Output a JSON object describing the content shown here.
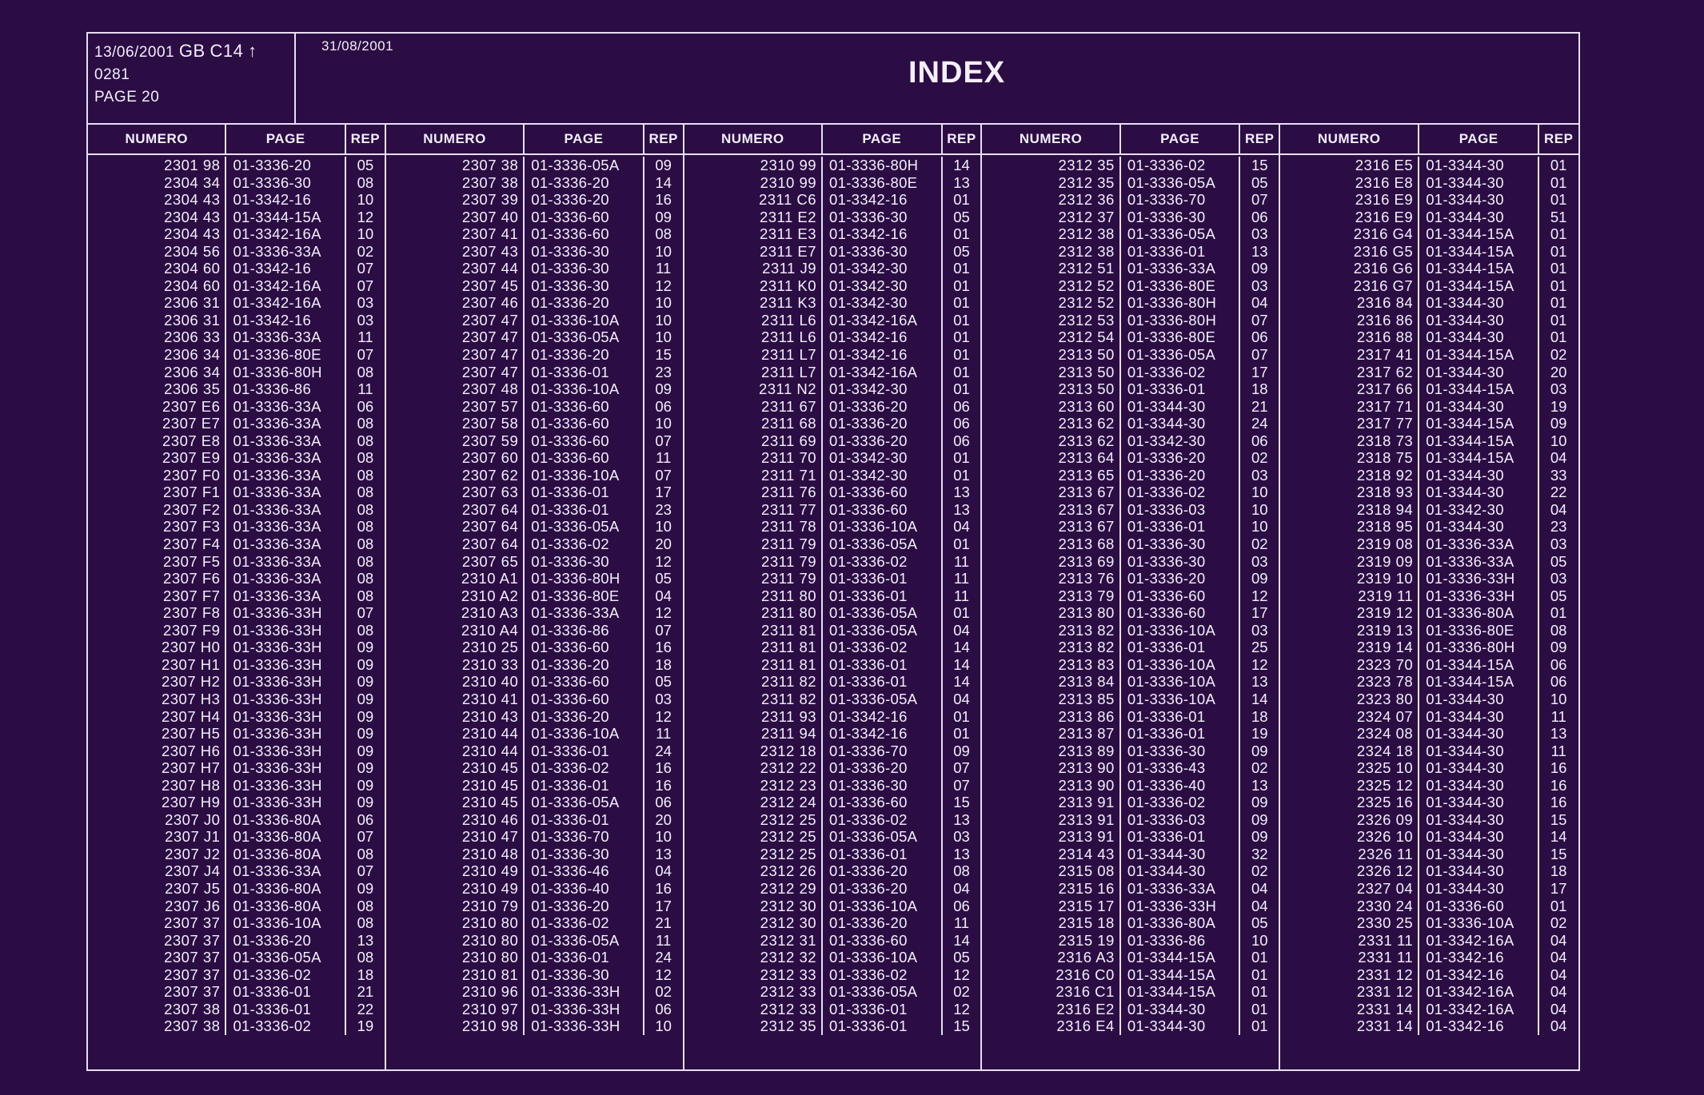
{
  "header": {
    "date1": "13/06/2001",
    "code": "GB",
    "code2": "C14",
    "arrow": "↑",
    "line2": "0281",
    "page_label": "PAGE 20",
    "date2": "31/08/2001",
    "title": "INDEX"
  },
  "column_headers": {
    "numero": "NUMERO",
    "page": "PAGE",
    "rep": "REP"
  },
  "columns": [
    [
      [
        "2301 98",
        "01-3336-20",
        "05"
      ],
      [
        "2304 34",
        "01-3336-30",
        "08"
      ],
      [
        "2304 43",
        "01-3342-16",
        "10"
      ],
      [
        "2304 43",
        "01-3344-15A",
        "12"
      ],
      [
        "2304 43",
        "01-3342-16A",
        "10"
      ],
      [
        "2304 56",
        "01-3336-33A",
        "02"
      ],
      [
        "2304 60",
        "01-3342-16",
        "07"
      ],
      [
        "2304 60",
        "01-3342-16A",
        "07"
      ],
      [
        "2306 31",
        "01-3342-16A",
        "03"
      ],
      [
        "2306 31",
        "01-3342-16",
        "03"
      ],
      [
        "2306 33",
        "01-3336-33A",
        "11"
      ],
      [
        "2306 34",
        "01-3336-80E",
        "07"
      ],
      [
        "2306 34",
        "01-3336-80H",
        "08"
      ],
      [
        "2306 35",
        "01-3336-86",
        "11"
      ],
      [
        "2307 E6",
        "01-3336-33A",
        "06"
      ],
      [
        "2307 E7",
        "01-3336-33A",
        "08"
      ],
      [
        "2307 E8",
        "01-3336-33A",
        "08"
      ],
      [
        "2307 E9",
        "01-3336-33A",
        "08"
      ],
      [
        "2307 F0",
        "01-3336-33A",
        "08"
      ],
      [
        "2307 F1",
        "01-3336-33A",
        "08"
      ],
      [
        "2307 F2",
        "01-3336-33A",
        "08"
      ],
      [
        "2307 F3",
        "01-3336-33A",
        "08"
      ],
      [
        "2307 F4",
        "01-3336-33A",
        "08"
      ],
      [
        "2307 F5",
        "01-3336-33A",
        "08"
      ],
      [
        "2307 F6",
        "01-3336-33A",
        "08"
      ],
      [
        "2307 F7",
        "01-3336-33A",
        "08"
      ],
      [
        "2307 F8",
        "01-3336-33H",
        "07"
      ],
      [
        "2307 F9",
        "01-3336-33H",
        "08"
      ],
      [
        "2307 H0",
        "01-3336-33H",
        "09"
      ],
      [
        "2307 H1",
        "01-3336-33H",
        "09"
      ],
      [
        "2307 H2",
        "01-3336-33H",
        "09"
      ],
      [
        "2307 H3",
        "01-3336-33H",
        "09"
      ],
      [
        "2307 H4",
        "01-3336-33H",
        "09"
      ],
      [
        "2307 H5",
        "01-3336-33H",
        "09"
      ],
      [
        "2307 H6",
        "01-3336-33H",
        "09"
      ],
      [
        "2307 H7",
        "01-3336-33H",
        "09"
      ],
      [
        "2307 H8",
        "01-3336-33H",
        "09"
      ],
      [
        "2307 H9",
        "01-3336-33H",
        "09"
      ],
      [
        "2307 J0",
        "01-3336-80A",
        "06"
      ],
      [
        "2307 J1",
        "01-3336-80A",
        "07"
      ],
      [
        "2307 J2",
        "01-3336-80A",
        "08"
      ],
      [
        "2307 J4",
        "01-3336-33A",
        "07"
      ],
      [
        "2307 J5",
        "01-3336-80A",
        "09"
      ],
      [
        "2307 J6",
        "01-3336-80A",
        "08"
      ],
      [
        "2307 37",
        "01-3336-10A",
        "08"
      ],
      [
        "2307 37",
        "01-3336-20",
        "13"
      ],
      [
        "2307 37",
        "01-3336-05A",
        "08"
      ],
      [
        "2307 37",
        "01-3336-02",
        "18"
      ],
      [
        "2307 37",
        "01-3336-01",
        "21"
      ],
      [
        "2307 38",
        "01-3336-01",
        "22"
      ],
      [
        "2307 38",
        "01-3336-02",
        "19"
      ]
    ],
    [
      [
        "2307 38",
        "01-3336-05A",
        "09"
      ],
      [
        "2307 38",
        "01-3336-20",
        "14"
      ],
      [
        "2307 39",
        "01-3336-20",
        "16"
      ],
      [
        "2307 40",
        "01-3336-60",
        "09"
      ],
      [
        "2307 41",
        "01-3336-60",
        "08"
      ],
      [
        "2307 43",
        "01-3336-30",
        "10"
      ],
      [
        "2307 44",
        "01-3336-30",
        "11"
      ],
      [
        "2307 45",
        "01-3336-30",
        "12"
      ],
      [
        "2307 46",
        "01-3336-20",
        "10"
      ],
      [
        "2307 47",
        "01-3336-10A",
        "10"
      ],
      [
        "2307 47",
        "01-3336-05A",
        "10"
      ],
      [
        "2307 47",
        "01-3336-20",
        "15"
      ],
      [
        "2307 47",
        "01-3336-01",
        "23"
      ],
      [
        "2307 48",
        "01-3336-10A",
        "09"
      ],
      [
        "2307 57",
        "01-3336-60",
        "06"
      ],
      [
        "2307 58",
        "01-3336-60",
        "10"
      ],
      [
        "2307 59",
        "01-3336-60",
        "07"
      ],
      [
        "2307 60",
        "01-3336-60",
        "11"
      ],
      [
        "2307 62",
        "01-3336-10A",
        "07"
      ],
      [
        "2307 63",
        "01-3336-01",
        "17"
      ],
      [
        "2307 64",
        "01-3336-01",
        "23"
      ],
      [
        "2307 64",
        "01-3336-05A",
        "10"
      ],
      [
        "2307 64",
        "01-3336-02",
        "20"
      ],
      [
        "2307 65",
        "01-3336-30",
        "12"
      ],
      [
        "2310 A1",
        "01-3336-80H",
        "05"
      ],
      [
        "2310 A2",
        "01-3336-80E",
        "04"
      ],
      [
        "2310 A3",
        "01-3336-33A",
        "12"
      ],
      [
        "2310 A4",
        "01-3336-86",
        "07"
      ],
      [
        "2310 25",
        "01-3336-60",
        "16"
      ],
      [
        "2310 33",
        "01-3336-20",
        "18"
      ],
      [
        "2310 40",
        "01-3336-60",
        "05"
      ],
      [
        "2310 41",
        "01-3336-60",
        "03"
      ],
      [
        "2310 43",
        "01-3336-20",
        "12"
      ],
      [
        "2310 44",
        "01-3336-10A",
        "11"
      ],
      [
        "2310 44",
        "01-3336-01",
        "24"
      ],
      [
        "2310 45",
        "01-3336-02",
        "16"
      ],
      [
        "2310 45",
        "01-3336-01",
        "16"
      ],
      [
        "2310 45",
        "01-3336-05A",
        "06"
      ],
      [
        "2310 46",
        "01-3336-01",
        "20"
      ],
      [
        "2310 47",
        "01-3336-70",
        "10"
      ],
      [
        "2310 48",
        "01-3336-30",
        "13"
      ],
      [
        "2310 49",
        "01-3336-46",
        "04"
      ],
      [
        "2310 49",
        "01-3336-40",
        "16"
      ],
      [
        "2310 79",
        "01-3336-20",
        "17"
      ],
      [
        "2310 80",
        "01-3336-02",
        "21"
      ],
      [
        "2310 80",
        "01-3336-05A",
        "11"
      ],
      [
        "2310 80",
        "01-3336-01",
        "24"
      ],
      [
        "2310 81",
        "01-3336-30",
        "12"
      ],
      [
        "2310 96",
        "01-3336-33H",
        "02"
      ],
      [
        "2310 97",
        "01-3336-33H",
        "06"
      ],
      [
        "2310 98",
        "01-3336-33H",
        "10"
      ]
    ],
    [
      [
        "2310 99",
        "01-3336-80H",
        "14"
      ],
      [
        "2310 99",
        "01-3336-80E",
        "13"
      ],
      [
        "2311 C6",
        "01-3342-16",
        "01"
      ],
      [
        "2311 E2",
        "01-3336-30",
        "05"
      ],
      [
        "2311 E3",
        "01-3342-16",
        "01"
      ],
      [
        "2311 E7",
        "01-3336-30",
        "05"
      ],
      [
        "2311 J9",
        "01-3342-30",
        "01"
      ],
      [
        "2311 K0",
        "01-3342-30",
        "01"
      ],
      [
        "2311 K3",
        "01-3342-30",
        "01"
      ],
      [
        "2311 L6",
        "01-3342-16A",
        "01"
      ],
      [
        "2311 L6",
        "01-3342-16",
        "01"
      ],
      [
        "2311 L7",
        "01-3342-16",
        "01"
      ],
      [
        "2311 L7",
        "01-3342-16A",
        "01"
      ],
      [
        "2311 N2",
        "01-3342-30",
        "01"
      ],
      [
        "2311 67",
        "01-3336-20",
        "06"
      ],
      [
        "2311 68",
        "01-3336-20",
        "06"
      ],
      [
        "2311 69",
        "01-3336-20",
        "06"
      ],
      [
        "2311 70",
        "01-3342-30",
        "01"
      ],
      [
        "2311 71",
        "01-3342-30",
        "01"
      ],
      [
        "2311 76",
        "01-3336-60",
        "13"
      ],
      [
        "2311 77",
        "01-3336-60",
        "13"
      ],
      [
        "2311 78",
        "01-3336-10A",
        "04"
      ],
      [
        "2311 79",
        "01-3336-05A",
        "01"
      ],
      [
        "2311 79",
        "01-3336-02",
        "11"
      ],
      [
        "2311 79",
        "01-3336-01",
        "11"
      ],
      [
        "2311 80",
        "01-3336-01",
        "11"
      ],
      [
        "2311 80",
        "01-3336-05A",
        "01"
      ],
      [
        "2311 81",
        "01-3336-05A",
        "04"
      ],
      [
        "2311 81",
        "01-3336-02",
        "14"
      ],
      [
        "2311 81",
        "01-3336-01",
        "14"
      ],
      [
        "2311 82",
        "01-3336-01",
        "14"
      ],
      [
        "2311 82",
        "01-3336-05A",
        "04"
      ],
      [
        "2311 93",
        "01-3342-16",
        "01"
      ],
      [
        "2311 94",
        "01-3342-16",
        "01"
      ],
      [
        "2312 18",
        "01-3336-70",
        "09"
      ],
      [
        "2312 22",
        "01-3336-20",
        "07"
      ],
      [
        "2312 23",
        "01-3336-30",
        "07"
      ],
      [
        "2312 24",
        "01-3336-60",
        "15"
      ],
      [
        "2312 25",
        "01-3336-02",
        "13"
      ],
      [
        "2312 25",
        "01-3336-05A",
        "03"
      ],
      [
        "2312 25",
        "01-3336-01",
        "13"
      ],
      [
        "2312 26",
        "01-3336-20",
        "08"
      ],
      [
        "2312 29",
        "01-3336-20",
        "04"
      ],
      [
        "2312 30",
        "01-3336-10A",
        "06"
      ],
      [
        "2312 30",
        "01-3336-20",
        "11"
      ],
      [
        "2312 31",
        "01-3336-60",
        "14"
      ],
      [
        "2312 32",
        "01-3336-10A",
        "05"
      ],
      [
        "2312 33",
        "01-3336-02",
        "12"
      ],
      [
        "2312 33",
        "01-3336-05A",
        "02"
      ],
      [
        "2312 33",
        "01-3336-01",
        "12"
      ],
      [
        "2312 35",
        "01-3336-01",
        "15"
      ]
    ],
    [
      [
        "2312 35",
        "01-3336-02",
        "15"
      ],
      [
        "2312 35",
        "01-3336-05A",
        "05"
      ],
      [
        "2312 36",
        "01-3336-70",
        "07"
      ],
      [
        "2312 37",
        "01-3336-30",
        "06"
      ],
      [
        "2312 38",
        "01-3336-05A",
        "03"
      ],
      [
        "2312 38",
        "01-3336-01",
        "13"
      ],
      [
        "2312 51",
        "01-3336-33A",
        "09"
      ],
      [
        "2312 52",
        "01-3336-80E",
        "03"
      ],
      [
        "2312 52",
        "01-3336-80H",
        "04"
      ],
      [
        "2312 53",
        "01-3336-80H",
        "07"
      ],
      [
        "2312 54",
        "01-3336-80E",
        "06"
      ],
      [
        "2313 50",
        "01-3336-05A",
        "07"
      ],
      [
        "2313 50",
        "01-3336-02",
        "17"
      ],
      [
        "2313 50",
        "01-3336-01",
        "18"
      ],
      [
        "2313 60",
        "01-3344-30",
        "21"
      ],
      [
        "2313 62",
        "01-3344-30",
        "24"
      ],
      [
        "2313 62",
        "01-3342-30",
        "06"
      ],
      [
        "2313 64",
        "01-3336-20",
        "02"
      ],
      [
        "2313 65",
        "01-3336-20",
        "03"
      ],
      [
        "2313 67",
        "01-3336-02",
        "10"
      ],
      [
        "2313 67",
        "01-3336-03",
        "10"
      ],
      [
        "2313 67",
        "01-3336-01",
        "10"
      ],
      [
        "2313 68",
        "01-3336-30",
        "02"
      ],
      [
        "2313 69",
        "01-3336-30",
        "03"
      ],
      [
        "2313 76",
        "01-3336-20",
        "09"
      ],
      [
        "2313 79",
        "01-3336-60",
        "12"
      ],
      [
        "2313 80",
        "01-3336-60",
        "17"
      ],
      [
        "2313 82",
        "01-3336-10A",
        "03"
      ],
      [
        "2313 82",
        "01-3336-01",
        "25"
      ],
      [
        "2313 83",
        "01-3336-10A",
        "12"
      ],
      [
        "2313 84",
        "01-3336-10A",
        "13"
      ],
      [
        "2313 85",
        "01-3336-10A",
        "14"
      ],
      [
        "2313 86",
        "01-3336-01",
        "18"
      ],
      [
        "2313 87",
        "01-3336-01",
        "19"
      ],
      [
        "2313 89",
        "01-3336-30",
        "09"
      ],
      [
        "2313 90",
        "01-3336-43",
        "02"
      ],
      [
        "2313 90",
        "01-3336-40",
        "13"
      ],
      [
        "2313 91",
        "01-3336-02",
        "09"
      ],
      [
        "2313 91",
        "01-3336-03",
        "09"
      ],
      [
        "2313 91",
        "01-3336-01",
        "09"
      ],
      [
        "2314 43",
        "01-3344-30",
        "32"
      ],
      [
        "2315 08",
        "01-3344-30",
        "02"
      ],
      [
        "2315 16",
        "01-3336-33A",
        "04"
      ],
      [
        "2315 17",
        "01-3336-33H",
        "04"
      ],
      [
        "2315 18",
        "01-3336-80A",
        "05"
      ],
      [
        "2315 19",
        "01-3336-86",
        "10"
      ],
      [
        "2316 A3",
        "01-3344-15A",
        "01"
      ],
      [
        "2316 C0",
        "01-3344-15A",
        "01"
      ],
      [
        "2316 C1",
        "01-3344-15A",
        "01"
      ],
      [
        "2316 E2",
        "01-3344-30",
        "01"
      ],
      [
        "2316 E4",
        "01-3344-30",
        "01"
      ]
    ],
    [
      [
        "2316 E5",
        "01-3344-30",
        "01"
      ],
      [
        "2316 E8",
        "01-3344-30",
        "01"
      ],
      [
        "2316 E9",
        "01-3344-30",
        "01"
      ],
      [
        "2316 E9",
        "01-3344-30",
        "51"
      ],
      [
        "2316 G4",
        "01-3344-15A",
        "01"
      ],
      [
        "2316 G5",
        "01-3344-15A",
        "01"
      ],
      [
        "2316 G6",
        "01-3344-15A",
        "01"
      ],
      [
        "2316 G7",
        "01-3344-15A",
        "01"
      ],
      [
        "2316 84",
        "01-3344-30",
        "01"
      ],
      [
        "2316 86",
        "01-3344-30",
        "01"
      ],
      [
        "2316 88",
        "01-3344-30",
        "01"
      ],
      [
        "2317 41",
        "01-3344-15A",
        "02"
      ],
      [
        "2317 62",
        "01-3344-30",
        "20"
      ],
      [
        "2317 66",
        "01-3344-15A",
        "03"
      ],
      [
        "2317 71",
        "01-3344-30",
        "19"
      ],
      [
        "2317 77",
        "01-3344-15A",
        "09"
      ],
      [
        "2318 73",
        "01-3344-15A",
        "10"
      ],
      [
        "2318 75",
        "01-3344-15A",
        "04"
      ],
      [
        "2318 92",
        "01-3344-30",
        "33"
      ],
      [
        "2318 93",
        "01-3344-30",
        "22"
      ],
      [
        "2318 94",
        "01-3342-30",
        "04"
      ],
      [
        "2318 95",
        "01-3344-30",
        "23"
      ],
      [
        "2319 08",
        "01-3336-33A",
        "03"
      ],
      [
        "2319 09",
        "01-3336-33A",
        "05"
      ],
      [
        "2319 10",
        "01-3336-33H",
        "03"
      ],
      [
        "2319 11",
        "01-3336-33H",
        "05"
      ],
      [
        "2319 12",
        "01-3336-80A",
        "01"
      ],
      [
        "2319 13",
        "01-3336-80E",
        "08"
      ],
      [
        "2319 14",
        "01-3336-80H",
        "09"
      ],
      [
        "2323 70",
        "01-3344-15A",
        "06"
      ],
      [
        "2323 78",
        "01-3344-15A",
        "06"
      ],
      [
        "2323 80",
        "01-3344-30",
        "10"
      ],
      [
        "2324 07",
        "01-3344-30",
        "11"
      ],
      [
        "2324 08",
        "01-3344-30",
        "13"
      ],
      [
        "2324 18",
        "01-3344-30",
        "11"
      ],
      [
        "2325 10",
        "01-3344-30",
        "16"
      ],
      [
        "2325 12",
        "01-3344-30",
        "16"
      ],
      [
        "2325 16",
        "01-3344-30",
        "16"
      ],
      [
        "2326 09",
        "01-3344-30",
        "15"
      ],
      [
        "2326 10",
        "01-3344-30",
        "14"
      ],
      [
        "2326 11",
        "01-3344-30",
        "15"
      ],
      [
        "2326 12",
        "01-3344-30",
        "18"
      ],
      [
        "2327 04",
        "01-3344-30",
        "17"
      ],
      [
        "2330 24",
        "01-3336-60",
        "01"
      ],
      [
        "2330 25",
        "01-3336-10A",
        "02"
      ],
      [
        "2331 11",
        "01-3342-16A",
        "04"
      ],
      [
        "2331 11",
        "01-3342-16",
        "04"
      ],
      [
        "2331 12",
        "01-3342-16",
        "04"
      ],
      [
        "2331 12",
        "01-3342-16A",
        "04"
      ],
      [
        "2331 14",
        "01-3342-16A",
        "04"
      ],
      [
        "2331 14",
        "01-3342-16",
        "04"
      ]
    ]
  ]
}
